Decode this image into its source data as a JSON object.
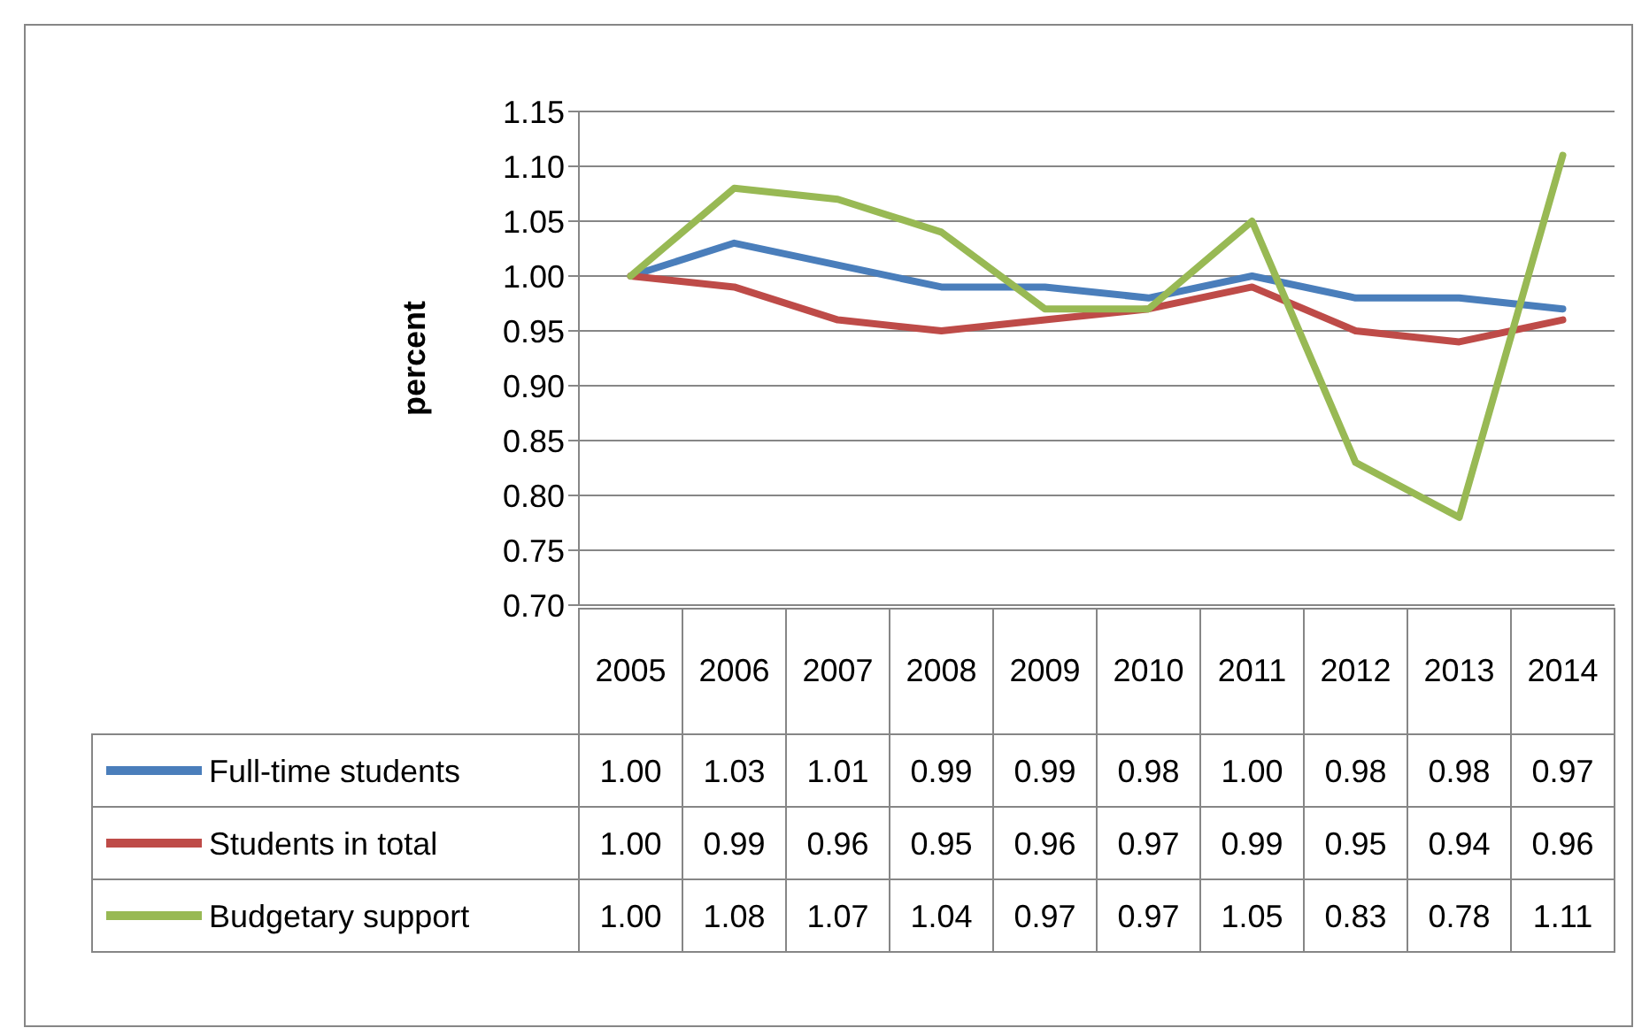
{
  "chart_data": {
    "type": "line",
    "ylabel": "percent",
    "categories": [
      "2005",
      "2006",
      "2007",
      "2008",
      "2009",
      "2010",
      "2011",
      "2012",
      "2013",
      "2014"
    ],
    "series": [
      {
        "name": "Full-time students",
        "color": "#4a7ebb",
        "values": [
          1.0,
          1.03,
          1.01,
          0.99,
          0.99,
          0.98,
          1.0,
          0.98,
          0.98,
          0.97
        ],
        "value_labels": [
          "1.00",
          "1.03",
          "1.01",
          "0.99",
          "0.99",
          "0.98",
          "1.00",
          "0.98",
          "0.98",
          "0.97"
        ]
      },
      {
        "name": "Students in total",
        "color": "#be4b48",
        "values": [
          1.0,
          0.99,
          0.96,
          0.95,
          0.96,
          0.97,
          0.99,
          0.95,
          0.94,
          0.96
        ],
        "value_labels": [
          "1.00",
          "0.99",
          "0.96",
          "0.95",
          "0.96",
          "0.97",
          "0.99",
          "0.95",
          "0.94",
          "0.96"
        ]
      },
      {
        "name": "Budgetary support",
        "color": "#98b954",
        "values": [
          1.0,
          1.08,
          1.07,
          1.04,
          0.97,
          0.97,
          1.05,
          0.83,
          0.78,
          1.11
        ],
        "value_labels": [
          "1.00",
          "1.08",
          "1.07",
          "1.04",
          "0.97",
          "0.97",
          "1.05",
          "0.83",
          "0.78",
          "1.11"
        ]
      }
    ],
    "ylim": [
      0.7,
      1.15
    ],
    "yticks": [
      {
        "value": 0.7,
        "label": "0.70"
      },
      {
        "value": 0.75,
        "label": "0.75"
      },
      {
        "value": 0.8,
        "label": "0.80"
      },
      {
        "value": 0.85,
        "label": "0.85"
      },
      {
        "value": 0.9,
        "label": "0.90"
      },
      {
        "value": 0.95,
        "label": "0.95"
      },
      {
        "value": 1.0,
        "label": "1.00"
      },
      {
        "value": 1.05,
        "label": "1.05"
      },
      {
        "value": 1.1,
        "label": "1.10"
      },
      {
        "value": 1.15,
        "label": "1.15"
      }
    ],
    "grid": "y",
    "legend": "bottom",
    "marker": "none"
  }
}
